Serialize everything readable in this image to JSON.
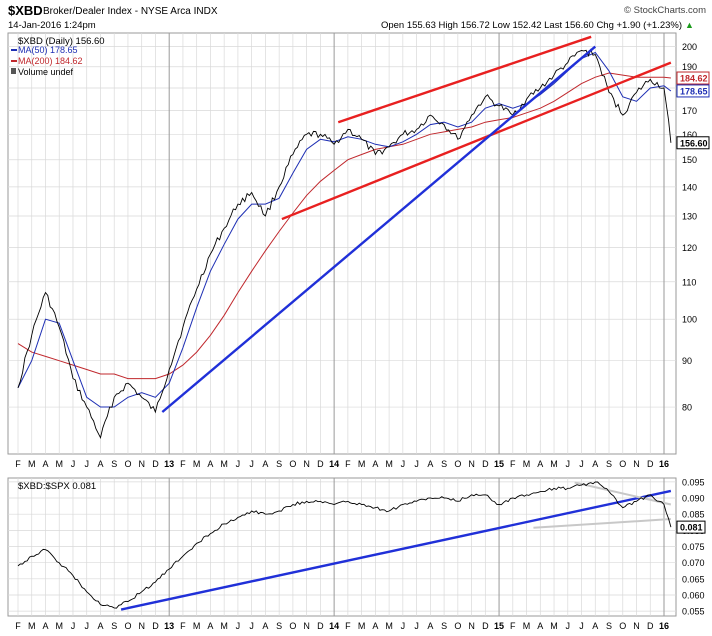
{
  "header": {
    "symbol": "$XBD",
    "name": "Broker/Dealer Index - NYSE Arca INDX",
    "watermark": "© StockCharts.com",
    "date": "14-Jan-2016 1:24pm",
    "ohlc": "Open 155.63  High 156.72  Low 152.42  Last 156.60  Chg +1.90 (+1.23%)",
    "chg_arrow": "▲"
  },
  "colors": {
    "price": "#000000",
    "ma50": "#1e2fb4",
    "ma200": "#c0282d",
    "channel": "#e82020",
    "trend": "#2030d8",
    "ratio_support": "#c8c8c8",
    "grid": "#d9d9d9"
  },
  "chart_data": [
    {
      "type": "line",
      "title": "$XBD (Daily) 156.60",
      "legend": [
        {
          "label": "MA(50) 178.65",
          "color": "#1e2fb4"
        },
        {
          "label": "MA(200) 184.62",
          "color": "#c0282d"
        },
        {
          "label": "Volume undef",
          "color": "#555555"
        }
      ],
      "legend_position": "top-left",
      "y_scale": "log",
      "ylim": [
        71,
        207
      ],
      "y_ticks": [
        80,
        90,
        100,
        110,
        120,
        130,
        140,
        150,
        160,
        170,
        180,
        190,
        200
      ],
      "x_months": [
        "F",
        "M",
        "A",
        "M",
        "J",
        "J",
        "A",
        "S",
        "O",
        "N",
        "D",
        "13",
        "F",
        "M",
        "A",
        "M",
        "J",
        "J",
        "A",
        "S",
        "O",
        "N",
        "D",
        "14",
        "F",
        "M",
        "A",
        "M",
        "J",
        "J",
        "A",
        "S",
        "O",
        "N",
        "D",
        "15",
        "F",
        "M",
        "A",
        "M",
        "J",
        "J",
        "A",
        "S",
        "O",
        "N",
        "D",
        "16"
      ],
      "series": [
        {
          "name": "$XBD",
          "x": [
            0,
            1,
            2,
            3,
            4,
            5,
            6,
            7,
            8,
            9,
            10,
            11,
            12,
            13,
            14,
            15,
            16,
            17,
            18,
            19,
            20,
            21,
            22,
            23,
            24,
            25,
            26,
            27,
            28,
            29,
            30,
            31,
            32,
            33,
            34,
            35,
            36,
            37,
            38,
            39,
            40,
            41,
            42,
            43,
            44,
            45,
            46,
            47,
            47.5
          ],
          "values": [
            84,
            96,
            107,
            98,
            86,
            80,
            74,
            82,
            85,
            82,
            79,
            88,
            98,
            108,
            118,
            126,
            134,
            138,
            130,
            140,
            152,
            160,
            160,
            156,
            162,
            158,
            152,
            155,
            160,
            162,
            168,
            164,
            158,
            168,
            176,
            172,
            168,
            175,
            180,
            186,
            192,
            198,
            196,
            178,
            168,
            178,
            184,
            180,
            156.6
          ]
        },
        {
          "name": "MA(50)",
          "x": [
            0,
            1,
            2,
            3,
            4,
            5,
            6,
            7,
            8,
            9,
            10,
            11,
            12,
            13,
            14,
            15,
            16,
            17,
            18,
            19,
            20,
            21,
            22,
            23,
            24,
            25,
            26,
            27,
            28,
            29,
            30,
            31,
            32,
            33,
            34,
            35,
            36,
            37,
            38,
            39,
            40,
            41,
            42,
            43,
            44,
            45,
            46,
            47,
            47.5
          ],
          "values": [
            84,
            90,
            100,
            99,
            90,
            82,
            80,
            80,
            82,
            83,
            82,
            85,
            93,
            103,
            113,
            121,
            129,
            134,
            134,
            136,
            145,
            154,
            158,
            157,
            159,
            158,
            156,
            155,
            157,
            160,
            164,
            165,
            163,
            165,
            171,
            173,
            171,
            173,
            177,
            182,
            188,
            194,
            197,
            188,
            176,
            174,
            180,
            181,
            178.65
          ]
        },
        {
          "name": "MA(200)",
          "x": [
            0,
            1,
            2,
            3,
            4,
            5,
            6,
            7,
            8,
            9,
            10,
            11,
            12,
            13,
            14,
            15,
            16,
            17,
            18,
            19,
            20,
            21,
            22,
            23,
            24,
            25,
            26,
            27,
            28,
            29,
            30,
            31,
            32,
            33,
            34,
            35,
            36,
            37,
            38,
            39,
            40,
            41,
            42,
            43,
            44,
            45,
            46,
            47,
            47.5
          ],
          "values": [
            94,
            92,
            91,
            90,
            89,
            88,
            87,
            87,
            86,
            86,
            86,
            87,
            89,
            92,
            96,
            101,
            107,
            113,
            119,
            125,
            131,
            137,
            142,
            146,
            150,
            152,
            154,
            155,
            156,
            158,
            160,
            161,
            162,
            163,
            165,
            166,
            167,
            169,
            171,
            174,
            178,
            182,
            185,
            187,
            186,
            185,
            185,
            185,
            184.62
          ]
        }
      ],
      "trendlines": [
        {
          "name": "channel-upper",
          "x": [
            23.3,
            41.7
          ],
          "values": [
            165,
            205
          ]
        },
        {
          "name": "channel-lower",
          "x": [
            19.2,
            47.5
          ],
          "values": [
            129,
            192
          ]
        },
        {
          "name": "support",
          "x": [
            10.5,
            42
          ],
          "values": [
            79,
            200
          ]
        }
      ],
      "last_labels": [
        {
          "text": "184.62",
          "value": 184.62,
          "color": "#c0282d"
        },
        {
          "text": "178.65",
          "value": 178.65,
          "color": "#1e2fb4"
        },
        {
          "text": "156.60",
          "value": 156.6,
          "color": "#000000"
        }
      ]
    },
    {
      "type": "line",
      "title": "$XBD:$SPX 0.081",
      "ylim": [
        0.0535,
        0.0962
      ],
      "y_ticks": [
        0.055,
        0.06,
        0.065,
        0.07,
        0.075,
        0.08,
        0.085,
        0.09,
        0.095
      ],
      "y_tick_labels": [
        "0.055",
        "0.060",
        "0.065",
        "0.070",
        "0.075",
        "0.080",
        "0.085",
        "0.090",
        "0.095"
      ],
      "x_months": [
        "F",
        "M",
        "A",
        "M",
        "J",
        "J",
        "A",
        "S",
        "O",
        "N",
        "D",
        "13",
        "F",
        "M",
        "A",
        "M",
        "J",
        "J",
        "A",
        "S",
        "O",
        "N",
        "D",
        "14",
        "F",
        "M",
        "A",
        "M",
        "J",
        "J",
        "A",
        "S",
        "O",
        "N",
        "D",
        "15",
        "F",
        "M",
        "A",
        "M",
        "J",
        "J",
        "A",
        "S",
        "O",
        "N",
        "D",
        "16"
      ],
      "series": [
        {
          "name": "$XBD:$SPX",
          "x": [
            0,
            1,
            2,
            3,
            4,
            5,
            6,
            7,
            8,
            9,
            10,
            11,
            12,
            13,
            14,
            15,
            16,
            17,
            18,
            19,
            20,
            21,
            22,
            23,
            24,
            25,
            26,
            27,
            28,
            29,
            30,
            31,
            32,
            33,
            34,
            35,
            36,
            37,
            38,
            39,
            40,
            41,
            42,
            43,
            44,
            45,
            46,
            47,
            47.5
          ],
          "values": [
            0.069,
            0.072,
            0.074,
            0.07,
            0.066,
            0.061,
            0.057,
            0.056,
            0.058,
            0.061,
            0.064,
            0.068,
            0.072,
            0.076,
            0.079,
            0.082,
            0.084,
            0.086,
            0.085,
            0.086,
            0.088,
            0.089,
            0.089,
            0.088,
            0.089,
            0.088,
            0.087,
            0.086,
            0.088,
            0.089,
            0.09,
            0.09,
            0.089,
            0.091,
            0.091,
            0.088,
            0.09,
            0.091,
            0.092,
            0.093,
            0.093,
            0.094,
            0.095,
            0.092,
            0.087,
            0.089,
            0.091,
            0.088,
            0.081
          ]
        }
      ],
      "trendlines": [
        {
          "name": "support",
          "x": [
            7.5,
            47.5
          ],
          "values": [
            0.0555,
            0.0922
          ]
        },
        {
          "name": "gray-upper",
          "x": [
            40.5,
            47.5
          ],
          "values": [
            0.0948,
            0.088
          ]
        },
        {
          "name": "gray-lower",
          "x": [
            37.5,
            47.5
          ],
          "values": [
            0.0808,
            0.0835
          ]
        }
      ],
      "last_labels": [
        {
          "text": "0.081",
          "value": 0.081,
          "color": "#000000"
        }
      ]
    }
  ]
}
